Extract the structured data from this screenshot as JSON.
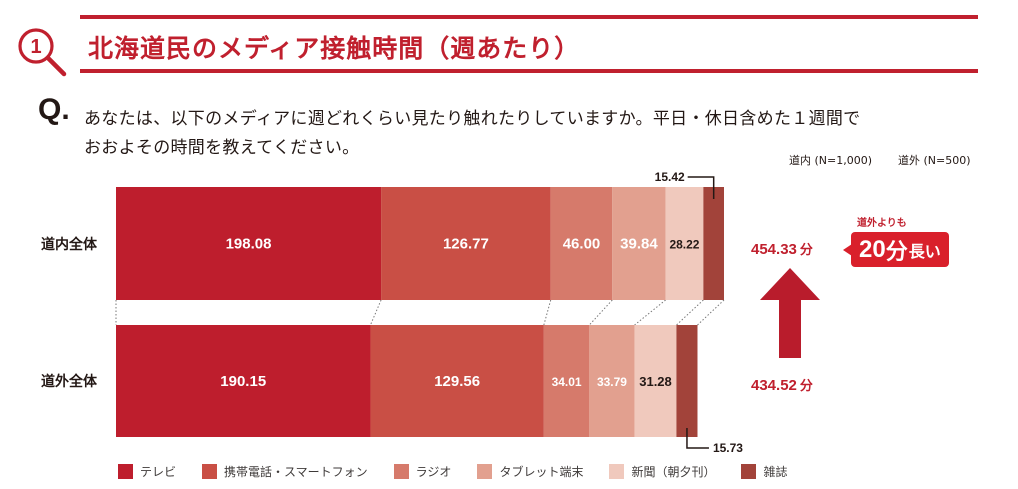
{
  "header": {
    "section_number": "1",
    "title": "北海道民のメディア接触時間（週あたり）",
    "accent_color": "#c0202e"
  },
  "question": {
    "mark": "Q.",
    "line1": "あなたは、以下のメディアに週どれくらい見たり触れたりしていますか。平日・休日含めた１週間で",
    "line2": "おおよその時間を教えてください。"
  },
  "samples": {
    "inside": "道内 (N=1,000)",
    "outside": "道外 (N=500)"
  },
  "totals": {
    "inside": "454.33",
    "outside": "434.52",
    "unit": "分"
  },
  "difference": {
    "caption": "道外よりも",
    "value": "20",
    "unit": "分",
    "suffix": "長い"
  },
  "chart_data": {
    "type": "bar",
    "orientation": "horizontal",
    "stacked": true,
    "title": "北海道民のメディア接触時間（週あたり）",
    "xlabel": "",
    "ylabel": "",
    "unit": "分",
    "grid": false,
    "legend_position": "bottom",
    "categories": [
      "道内全体",
      "道外全体"
    ],
    "series": [
      {
        "name": "テレビ",
        "color": "#be1e2d",
        "values": [
          198.08,
          190.15
        ]
      },
      {
        "name": "携帯電話・スマートフォン",
        "color": "#c94f45",
        "values": [
          126.77,
          129.56
        ]
      },
      {
        "name": "ラジオ",
        "color": "#d67a6b",
        "values": [
          46.0,
          34.01
        ]
      },
      {
        "name": "タブレット端末",
        "color": "#e2a08f",
        "values": [
          39.84,
          33.79
        ]
      },
      {
        "name": "新聞（朝夕刊）",
        "color": "#f0c9bd",
        "values": [
          28.22,
          31.28
        ]
      },
      {
        "name": "雑誌",
        "color": "#a2433a",
        "values": [
          15.42,
          15.73
        ]
      }
    ],
    "totals": [
      454.33,
      434.52
    ],
    "value_labels": [
      [
        "198.08",
        "126.77",
        "46.00",
        "39.84",
        "28.22",
        "15.42"
      ],
      [
        "190.15",
        "129.56",
        "34.01",
        "33.79",
        "31.28",
        "15.73"
      ]
    ],
    "label_colors": [
      "#ffffff",
      "#ffffff",
      "#ffffff",
      "#ffffff",
      "#231815",
      "#231815"
    ]
  }
}
